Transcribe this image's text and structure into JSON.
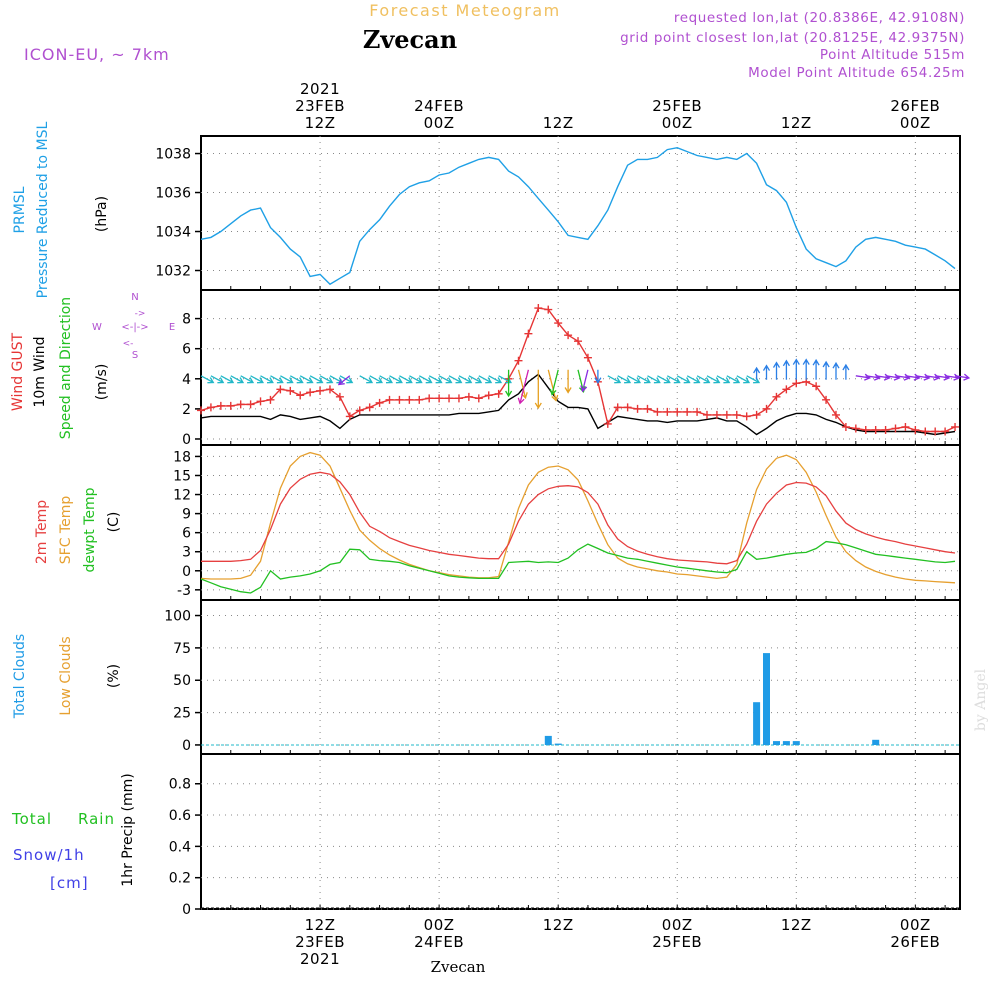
{
  "header": {
    "subtitle": "Forecast Meteogram",
    "location": "Zvecan",
    "model": "ICON-EU, ~ 7km",
    "requested": "requested lon,lat (20.8386E, 42.9108N)",
    "gridpoint": "grid point closest lon,lat (20.8125E, 42.9375N)",
    "point_alt": "Point Altitude 515m",
    "model_alt": "Model Point Altitude 654.25m",
    "bottom_label": "Zvecan",
    "watermark": "by Angel"
  },
  "colors": {
    "pressure": "#1fa0e6",
    "gust": "#e63535",
    "wind": "#000000",
    "arrow_cyan": "#22b8c8",
    "arrow_blue": "#2a7fe6",
    "arrow_purple": "#8a2be2",
    "arrow_orange": "#e6a020",
    "arrow_green": "#22c022",
    "arrow_magenta": "#d020b0",
    "temp": "#e64040",
    "sfc": "#e6a030",
    "dewpt": "#22c022",
    "clouds_total": "#1f9be6",
    "rain": "#22c022",
    "snow": "#4040e6",
    "header_purple": "#b050d0",
    "header_orange": "#f0c060"
  },
  "time_axis": {
    "top_labels": [
      {
        "t": 12,
        "lines": [
          "2021",
          "23FEB",
          "12Z"
        ]
      },
      {
        "t": 24,
        "lines": [
          "24FEB",
          "00Z"
        ]
      },
      {
        "t": 36,
        "lines": [
          "12Z"
        ]
      },
      {
        "t": 48,
        "lines": [
          "25FEB",
          "00Z"
        ]
      },
      {
        "t": 60,
        "lines": [
          "12Z"
        ]
      },
      {
        "t": 72,
        "lines": [
          "26FEB",
          "00Z"
        ]
      }
    ],
    "bottom_labels": [
      {
        "t": 12,
        "lines": [
          "12Z",
          "23FEB",
          "2021"
        ]
      },
      {
        "t": 24,
        "lines": [
          "00Z",
          "24FEB"
        ]
      },
      {
        "t": 36,
        "lines": [
          "12Z"
        ]
      },
      {
        "t": 48,
        "lines": [
          "00Z",
          "25FEB"
        ]
      },
      {
        "t": 60,
        "lines": [
          "12Z"
        ]
      },
      {
        "t": 72,
        "lines": [
          "00Z",
          "26FEB"
        ]
      }
    ]
  },
  "panel_labels": {
    "pressure": [
      "PRMSL",
      "Pressure Reduced to MSL",
      "(hPa)"
    ],
    "wind": [
      "Wind GUST",
      "10m Wind",
      "Speed and Direction",
      "(m/s)"
    ],
    "compass": {
      "n": "N",
      "s": "S",
      "w": "W",
      "e": "E"
    },
    "temp": [
      "2m Temp",
      "SFC Temp",
      "dewpt Temp",
      "(C)"
    ],
    "clouds": [
      "Total Clouds",
      "Low Clouds",
      "(%)"
    ],
    "precip": [
      "Total",
      "Rain",
      "Snow/1h",
      "[cm]",
      "1hr Precip (mm)"
    ]
  },
  "chart_data": [
    {
      "type": "line",
      "id": "pressure",
      "ylabel": "(hPa)",
      "yticks": [
        1032,
        1034,
        1036,
        1038
      ],
      "ylim": [
        1031,
        1038.9
      ],
      "x": [
        0,
        1,
        2,
        3,
        4,
        5,
        6,
        7,
        8,
        9,
        10,
        11,
        12,
        13,
        14,
        15,
        16,
        17,
        18,
        19,
        20,
        21,
        22,
        23,
        24,
        25,
        26,
        27,
        28,
        29,
        30,
        31,
        32,
        33,
        34,
        35,
        36,
        37,
        38,
        39,
        40,
        41,
        42,
        43,
        44,
        45,
        46,
        47,
        48,
        49,
        50,
        51,
        52,
        53,
        54,
        55,
        56,
        57,
        58,
        59,
        60,
        61,
        62,
        63,
        64,
        65,
        66,
        67,
        68,
        69,
        70,
        71,
        72,
        73,
        74,
        75,
        76
      ],
      "series": [
        {
          "name": "PRMSL",
          "values": [
            1033.6,
            1033.7,
            1034.0,
            1034.4,
            1034.8,
            1035.1,
            1035.2,
            1034.2,
            1033.7,
            1033.1,
            1032.7,
            1031.7,
            1031.8,
            1031.3,
            1031.6,
            1031.9,
            1033.5,
            1034.1,
            1034.6,
            1035.3,
            1035.9,
            1036.3,
            1036.5,
            1036.6,
            1036.9,
            1037.0,
            1037.3,
            1037.5,
            1037.7,
            1037.8,
            1037.7,
            1037.1,
            1036.8,
            1036.3,
            1035.7,
            1035.1,
            1034.5,
            1033.8,
            1033.7,
            1033.6,
            1034.3,
            1035.1,
            1036.3,
            1037.4,
            1037.7,
            1037.7,
            1037.8,
            1038.2,
            1038.3,
            1038.1,
            1037.9,
            1037.8,
            1037.7,
            1037.8,
            1037.7,
            1038.0,
            1037.5,
            1036.4,
            1036.1,
            1035.5,
            1034.2,
            1033.1,
            1032.6,
            1032.4,
            1032.2,
            1032.5,
            1033.2,
            1033.6,
            1033.7,
            1033.6,
            1033.5,
            1033.3,
            1033.2,
            1033.1,
            1032.8,
            1032.5,
            1032.1
          ]
        }
      ]
    },
    {
      "type": "line",
      "id": "wind",
      "ylabel": "(m/s)",
      "yticks": [
        0,
        2,
        4,
        6,
        8
      ],
      "ylim": [
        -0.4,
        9.9
      ],
      "x": [
        0,
        1,
        2,
        3,
        4,
        5,
        6,
        7,
        8,
        9,
        10,
        11,
        12,
        13,
        14,
        15,
        16,
        17,
        18,
        19,
        20,
        21,
        22,
        23,
        24,
        25,
        26,
        27,
        28,
        29,
        30,
        31,
        32,
        33,
        34,
        35,
        36,
        37,
        38,
        39,
        40,
        41,
        42,
        43,
        44,
        45,
        46,
        47,
        48,
        49,
        50,
        51,
        52,
        53,
        54,
        55,
        56,
        57,
        58,
        59,
        60,
        61,
        62,
        63,
        64,
        65,
        66,
        67,
        68,
        69,
        70,
        71,
        72,
        73,
        74,
        75,
        76
      ],
      "series": [
        {
          "name": "Wind GUST",
          "values": [
            1.9,
            2.1,
            2.2,
            2.2,
            2.3,
            2.3,
            2.5,
            2.6,
            3.3,
            3.2,
            2.9,
            3.1,
            3.2,
            3.3,
            2.8,
            1.5,
            1.9,
            2.1,
            2.4,
            2.6,
            2.6,
            2.6,
            2.6,
            2.7,
            2.7,
            2.7,
            2.7,
            2.8,
            2.7,
            2.9,
            3.0,
            4.0,
            5.2,
            7.0,
            8.7,
            8.6,
            7.7,
            6.9,
            6.5,
            5.4,
            3.8,
            1.0,
            2.1,
            2.1,
            2.0,
            2.0,
            1.8,
            1.8,
            1.8,
            1.8,
            1.8,
            1.6,
            1.6,
            1.6,
            1.6,
            1.5,
            1.6,
            2.0,
            2.8,
            3.3,
            3.7,
            3.8,
            3.5,
            2.6,
            1.6,
            0.8,
            0.7,
            0.6,
            0.6,
            0.6,
            0.7,
            0.8,
            0.6,
            0.5,
            0.5,
            0.5,
            0.8
          ]
        },
        {
          "name": "10m Wind",
          "values": [
            1.4,
            1.5,
            1.5,
            1.5,
            1.5,
            1.5,
            1.5,
            1.3,
            1.6,
            1.5,
            1.3,
            1.4,
            1.5,
            1.2,
            0.7,
            1.3,
            1.6,
            1.6,
            1.6,
            1.6,
            1.6,
            1.6,
            1.6,
            1.6,
            1.6,
            1.6,
            1.7,
            1.7,
            1.7,
            1.8,
            1.9,
            2.6,
            3.0,
            3.8,
            4.3,
            3.4,
            2.5,
            2.1,
            2.1,
            2.0,
            0.7,
            1.1,
            1.5,
            1.4,
            1.3,
            1.2,
            1.2,
            1.1,
            1.2,
            1.2,
            1.2,
            1.3,
            1.4,
            1.2,
            1.2,
            0.8,
            0.3,
            0.7,
            1.2,
            1.5,
            1.7,
            1.7,
            1.6,
            1.3,
            1.1,
            0.8,
            0.6,
            0.5,
            0.5,
            0.5,
            0.5,
            0.5,
            0.5,
            0.4,
            0.3,
            0.4,
            0.5
          ]
        }
      ],
      "arrows_level": 4.2,
      "arrow_groups": [
        {
          "from": 0,
          "to": 14,
          "color": "cyan",
          "dir": "SE"
        },
        {
          "from": 15,
          "to": 15,
          "color": "purple",
          "dir": "SW"
        },
        {
          "from": 16,
          "to": 30,
          "color": "cyan",
          "dir": "SE"
        },
        {
          "from": 31,
          "to": 40,
          "color": "mixed",
          "dir": "S"
        },
        {
          "from": 41,
          "to": 55,
          "color": "cyan",
          "dir": "SE"
        },
        {
          "from": 56,
          "to": 65,
          "color": "blue",
          "dir": "N"
        },
        {
          "from": 66,
          "to": 76,
          "color": "purple",
          "dir": "E"
        }
      ]
    },
    {
      "type": "line",
      "id": "temp",
      "ylabel": "(C)",
      "yticks": [
        -3,
        0,
        3,
        6,
        9,
        12,
        15,
        18
      ],
      "ylim": [
        -4.6,
        19.8
      ],
      "x": [
        0,
        1,
        2,
        3,
        4,
        5,
        6,
        7,
        8,
        9,
        10,
        11,
        12,
        13,
        14,
        15,
        16,
        17,
        18,
        19,
        20,
        21,
        22,
        23,
        24,
        25,
        26,
        27,
        28,
        29,
        30,
        31,
        32,
        33,
        34,
        35,
        36,
        37,
        38,
        39,
        40,
        41,
        42,
        43,
        44,
        45,
        46,
        47,
        48,
        49,
        50,
        51,
        52,
        53,
        54,
        55,
        56,
        57,
        58,
        59,
        60,
        61,
        62,
        63,
        64,
        65,
        66,
        67,
        68,
        69,
        70,
        71,
        72,
        73,
        74,
        75,
        76
      ],
      "series": [
        {
          "name": "2m Temp",
          "values": [
            1.5,
            1.5,
            1.5,
            1.5,
            1.6,
            1.8,
            3.2,
            6.5,
            10.5,
            13.0,
            14.4,
            15.2,
            15.5,
            15.2,
            14.0,
            12.0,
            9.2,
            7.0,
            6.2,
            5.2,
            4.6,
            4.0,
            3.6,
            3.2,
            2.9,
            2.6,
            2.4,
            2.2,
            2.0,
            1.9,
            1.9,
            4.2,
            7.8,
            10.5,
            12.0,
            12.9,
            13.3,
            13.4,
            13.2,
            12.3,
            10.5,
            7.2,
            5.0,
            3.8,
            3.1,
            2.6,
            2.2,
            1.9,
            1.7,
            1.6,
            1.5,
            1.4,
            1.2,
            1.1,
            1.6,
            4.2,
            7.8,
            10.5,
            12.2,
            13.5,
            13.9,
            13.8,
            13.2,
            11.8,
            9.4,
            7.5,
            6.5,
            5.8,
            5.3,
            4.9,
            4.6,
            4.2,
            3.9,
            3.6,
            3.3,
            3.0,
            2.8
          ]
        },
        {
          "name": "SFC Temp",
          "values": [
            -1.2,
            -1.3,
            -1.3,
            -1.3,
            -1.2,
            -0.7,
            1.5,
            7.5,
            13.0,
            16.5,
            18.0,
            18.6,
            18.2,
            16.5,
            13.0,
            9.5,
            6.4,
            4.8,
            3.5,
            2.5,
            1.7,
            1.0,
            0.5,
            0.0,
            -0.3,
            -0.6,
            -0.8,
            -1.0,
            -1.1,
            -1.1,
            -0.9,
            4.5,
            9.8,
            13.5,
            15.5,
            16.3,
            16.5,
            15.9,
            14.3,
            11.0,
            7.4,
            4.1,
            2.0,
            1.1,
            0.6,
            0.3,
            0.0,
            -0.2,
            -0.5,
            -0.6,
            -0.8,
            -1.0,
            -1.2,
            -1.0,
            1.0,
            7.5,
            12.8,
            16.0,
            17.7,
            18.2,
            17.5,
            15.5,
            12.4,
            8.7,
            5.3,
            3.0,
            1.6,
            0.6,
            -0.1,
            -0.6,
            -1.0,
            -1.3,
            -1.5,
            -1.6,
            -1.7,
            -1.8,
            -1.9
          ]
        },
        {
          "name": "dewpt Temp",
          "values": [
            -1.3,
            -1.9,
            -2.5,
            -2.9,
            -3.3,
            -3.5,
            -2.6,
            0.0,
            -1.3,
            -1.0,
            -0.8,
            -0.5,
            0.0,
            1.0,
            1.3,
            3.4,
            3.3,
            1.8,
            1.6,
            1.5,
            1.3,
            0.8,
            0.4,
            0.0,
            -0.4,
            -0.8,
            -1.0,
            -1.1,
            -1.2,
            -1.2,
            -1.2,
            1.3,
            1.4,
            1.5,
            1.3,
            1.4,
            1.3,
            2.0,
            3.3,
            4.2,
            3.5,
            2.8,
            2.4,
            2.0,
            1.8,
            1.5,
            1.2,
            0.9,
            0.6,
            0.4,
            0.2,
            0.0,
            -0.2,
            -0.3,
            0.2,
            3.0,
            1.8,
            2.0,
            2.3,
            2.6,
            2.8,
            2.9,
            3.5,
            4.6,
            4.4,
            4.1,
            3.6,
            3.1,
            2.6,
            2.4,
            2.2,
            2.0,
            1.8,
            1.6,
            1.4,
            1.3,
            1.5
          ]
        }
      ]
    },
    {
      "type": "bar",
      "id": "clouds",
      "ylabel": "(%)",
      "yticks": [
        0,
        25,
        50,
        75,
        100
      ],
      "ylim": [
        -7,
        112
      ],
      "series": [
        {
          "name": "Total Clouds",
          "points": [
            {
              "x": 35,
              "y": 7
            },
            {
              "x": 36,
              "y": 1
            },
            {
              "x": 56,
              "y": 33
            },
            {
              "x": 57,
              "y": 71
            },
            {
              "x": 58,
              "y": 3
            },
            {
              "x": 59,
              "y": 3
            },
            {
              "x": 60,
              "y": 3
            },
            {
              "x": 68,
              "y": 4
            }
          ]
        },
        {
          "name": "Low Clouds",
          "points": []
        }
      ]
    },
    {
      "type": "bar",
      "id": "precip",
      "ylabel": "1hr Precip (mm)",
      "yticks": [
        0,
        0.2,
        0.4,
        0.6,
        0.8
      ],
      "yticklabels": [
        "0",
        "0.2",
        "0.4",
        "0.6",
        "0.8"
      ],
      "ylim": [
        0,
        0.99
      ],
      "series": [
        {
          "name": "Total",
          "points": []
        },
        {
          "name": "Rain",
          "points": []
        },
        {
          "name": "Snow/1h",
          "points": []
        }
      ]
    }
  ]
}
